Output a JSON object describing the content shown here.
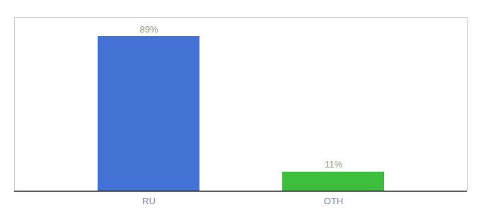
{
  "chart_data": {
    "type": "bar",
    "categories": [
      "RU",
      "OTH"
    ],
    "values": [
      89,
      11
    ],
    "colors": [
      "#4472d4",
      "#3dbf3d"
    ],
    "ylim": [
      0,
      100
    ],
    "data_labels": true,
    "value_labels": [
      "89%",
      "11%"
    ],
    "tick_labels": "x"
  }
}
